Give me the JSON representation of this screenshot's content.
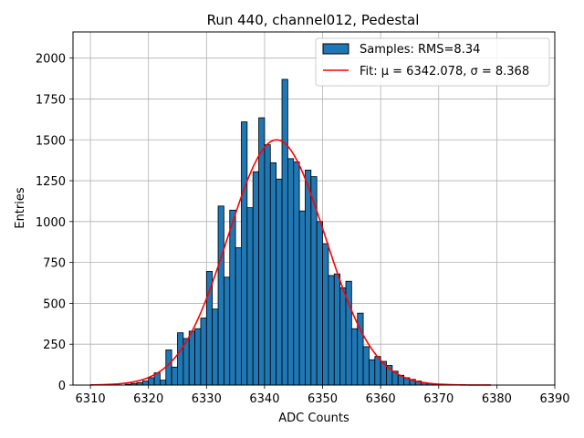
{
  "chart_data": {
    "type": "bar",
    "title": "Run 440, channel012, Pedestal",
    "xlabel": "ADC Counts",
    "ylabel": "Entries",
    "xlim": [
      6307,
      6390
    ],
    "ylim": [
      0,
      2160
    ],
    "xticks": [
      6310,
      6320,
      6330,
      6340,
      6350,
      6360,
      6370,
      6380,
      6390
    ],
    "yticks": [
      0,
      250,
      500,
      750,
      1000,
      1250,
      1500,
      1750,
      2000
    ],
    "grid": true,
    "legend_position": "top-right",
    "bin_width": 1,
    "bins": [
      6316,
      6317,
      6318,
      6319,
      6320,
      6321,
      6322,
      6323,
      6324,
      6325,
      6326,
      6327,
      6328,
      6329,
      6330,
      6331,
      6332,
      6333,
      6334,
      6335,
      6336,
      6337,
      6338,
      6339,
      6340,
      6341,
      6342,
      6343,
      6344,
      6345,
      6346,
      6347,
      6348,
      6349,
      6350,
      6351,
      6352,
      6353,
      6354,
      6355,
      6356,
      6357,
      6358,
      6359,
      6360,
      6361,
      6362,
      6363,
      6364,
      6365,
      6366,
      6367,
      6368,
      6369
    ],
    "counts": [
      5,
      10,
      15,
      25,
      45,
      75,
      30,
      215,
      110,
      320,
      285,
      330,
      345,
      410,
      695,
      465,
      1095,
      660,
      1070,
      840,
      1610,
      1085,
      1305,
      1635,
      1470,
      1360,
      1260,
      1870,
      1385,
      1365,
      1065,
      1315,
      1275,
      1000,
      865,
      670,
      680,
      595,
      635,
      345,
      440,
      235,
      155,
      175,
      145,
      120,
      85,
      60,
      45,
      35,
      25,
      15,
      8,
      4
    ],
    "series": [
      {
        "name": "Samples: RMS=8.34",
        "kind": "histogram",
        "color": "#1f77b4",
        "edgecolor": "#000000"
      },
      {
        "name": "Fit: μ = 6342.078, σ = 8.368",
        "kind": "gaussian-fit",
        "color": "#ff0000",
        "mu": 6342.078,
        "sigma": 8.368,
        "amplitude": 1500,
        "x_range": [
          6310,
          6379
        ]
      }
    ]
  }
}
